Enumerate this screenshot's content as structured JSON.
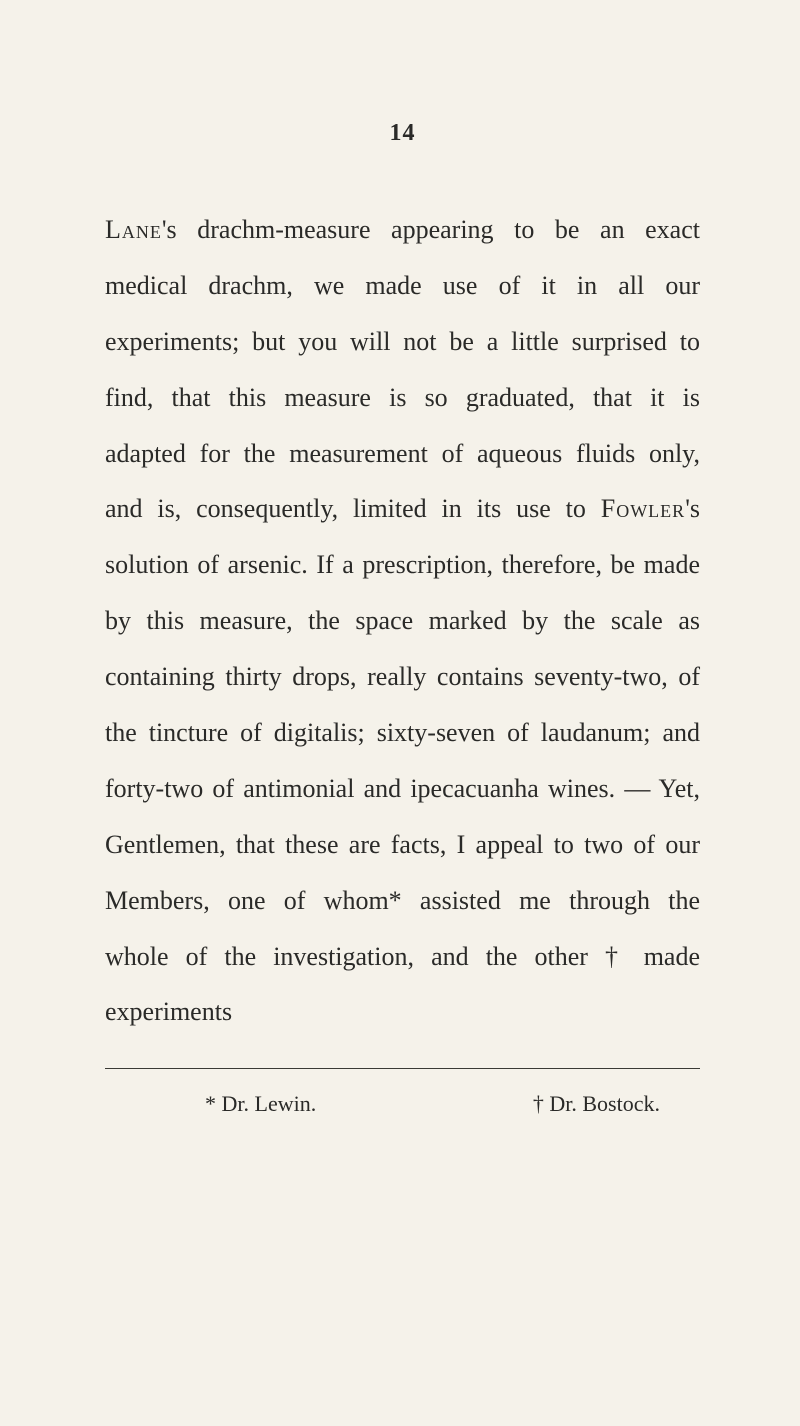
{
  "page": {
    "number": "14",
    "paragraph": "Lane's drachm-measure appearing to be an exact medical drachm, we made use of it in all our experiments; but you will not be a little surprised to find, that this mea­sure is so graduated, that it is adapted for the measurement of aqueous fluids only, and is, consequently, limited in its use to Fowler's solution of arsenic. If a pre­scription, therefore, be made by this mea­sure, the space marked by the scale as containing thirty drops, really contains se­venty-two, of the tincture of digitalis; sixty-seven of laudanum; and forty-two of an­timonial and ipecacuanha wines. — Yet, Gentlemen, that these are facts, I appeal to two of our Members, one of whom* assisted me through the whole of the inves­tigation, and the other† made experiments",
    "footnotes": {
      "left": "* Dr. Lewin.",
      "right": "† Dr. Bostock."
    }
  },
  "style": {
    "background_color": "#f5f2ea",
    "text_color": "#2a2a28",
    "body_fontsize": 26,
    "line_height": 2.15,
    "page_number_fontsize": 24,
    "footnote_fontsize": 22,
    "rule_color": "#3a3a35"
  }
}
